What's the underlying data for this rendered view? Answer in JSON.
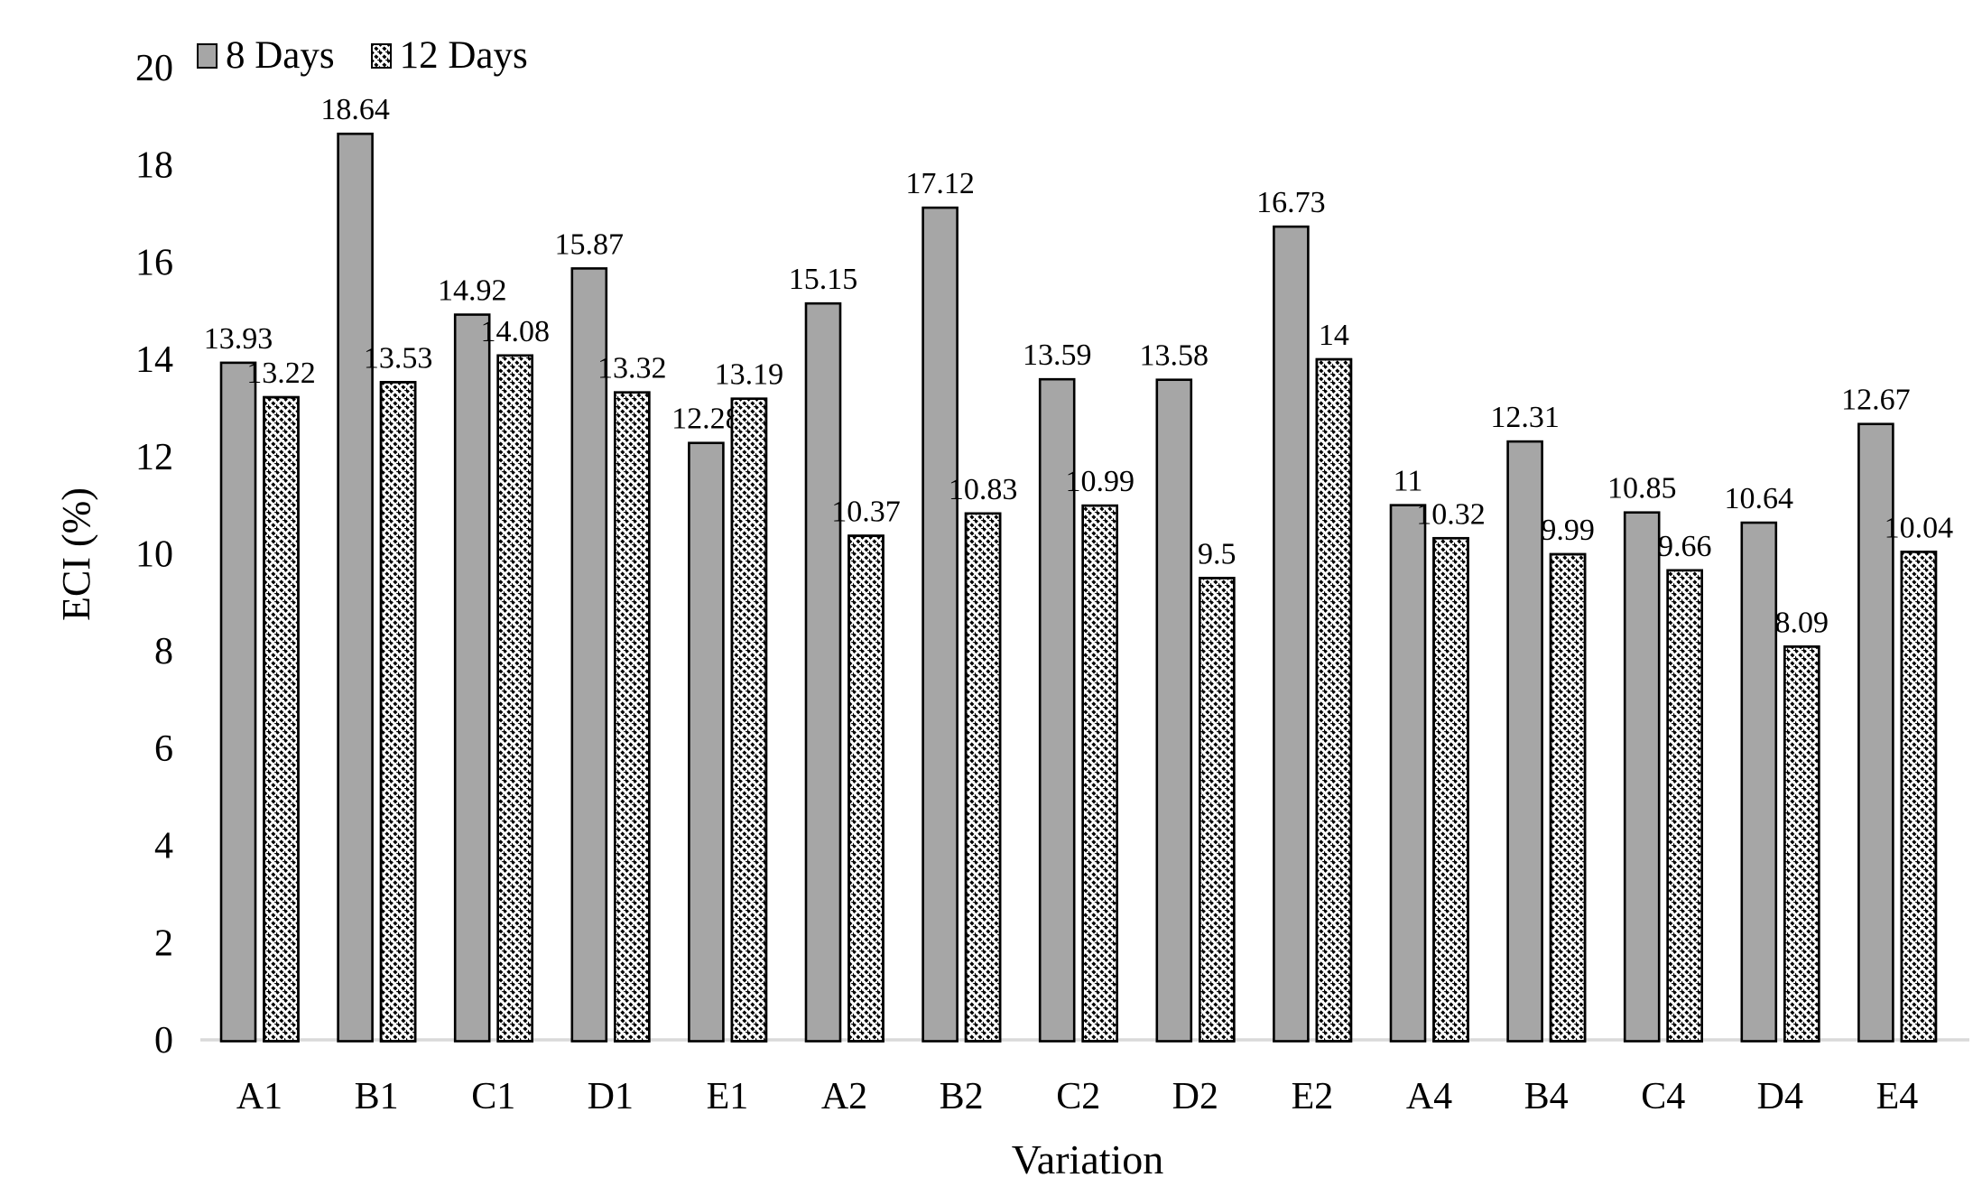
{
  "chart_data": {
    "type": "bar",
    "title": "",
    "xlabel": "Variation",
    "ylabel": "ECI (%)",
    "ylim": [
      0,
      20
    ],
    "ytick_step": 2,
    "yticks": [
      0,
      2,
      4,
      6,
      8,
      10,
      12,
      14,
      16,
      18,
      20
    ],
    "grid": false,
    "legend_position": "top-left",
    "background": "#ffffff",
    "axis_line_color": "#d9d9d9",
    "bar_outline_color": "#000000",
    "text_color": "#000000",
    "categories": [
      "A1",
      "B1",
      "C1",
      "D1",
      "E1",
      "A2",
      "B2",
      "C2",
      "D2",
      "E2",
      "A4",
      "B4",
      "C4",
      "D4",
      "E4"
    ],
    "series": [
      {
        "name": "8 Days",
        "style": "solid",
        "fill": "#a6a6a6",
        "values": [
          13.93,
          18.64,
          14.92,
          15.87,
          12.28,
          15.15,
          17.12,
          13.59,
          13.58,
          16.73,
          11,
          12.31,
          10.85,
          10.64,
          12.67
        ]
      },
      {
        "name": "12 Days",
        "style": "hatch-diagonal-down",
        "fill": "#ffffff",
        "values": [
          13.22,
          13.53,
          14.08,
          13.32,
          13.19,
          10.37,
          10.83,
          10.99,
          9.5,
          14,
          10.32,
          9.99,
          9.66,
          8.09,
          10.04
        ]
      }
    ]
  }
}
